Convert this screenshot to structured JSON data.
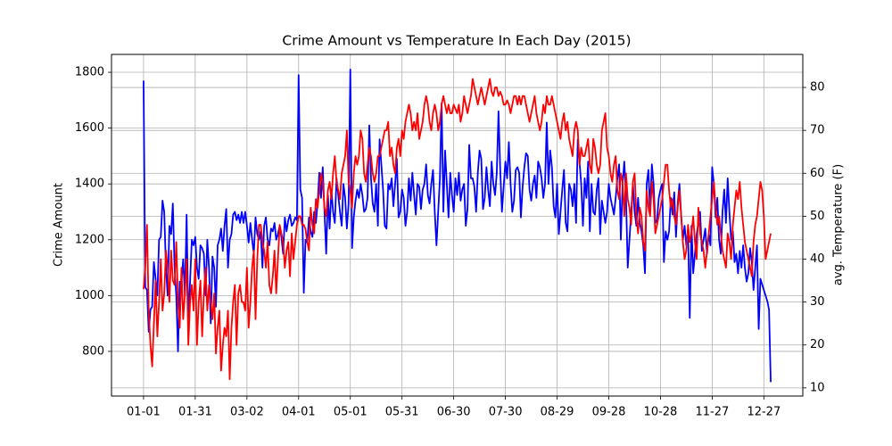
{
  "chart_data": {
    "type": "line",
    "title": "Crime Amount vs Temperature In Each Day (2015)",
    "ylabel": "Crime Amount",
    "y2label": "avg. Temperature (F)",
    "grid": true,
    "x": [
      "01-01",
      "01-02",
      "01-03",
      "01-04",
      "01-05",
      "01-06",
      "01-07",
      "01-08",
      "01-09",
      "01-10",
      "01-11",
      "01-12",
      "01-13",
      "01-14",
      "01-15",
      "01-16",
      "01-17",
      "01-18",
      "01-19",
      "01-20",
      "01-21",
      "01-22",
      "01-23",
      "01-24",
      "01-25",
      "01-26",
      "01-27",
      "01-28",
      "01-29",
      "01-30",
      "01-31",
      "02-01",
      "02-02",
      "02-03",
      "02-04",
      "02-05",
      "02-06",
      "02-07",
      "02-08",
      "02-09",
      "02-10",
      "02-11",
      "02-12",
      "02-13",
      "02-14",
      "02-15",
      "02-16",
      "02-17",
      "02-18",
      "02-19",
      "02-20",
      "02-21",
      "02-22",
      "02-23",
      "02-24",
      "02-25",
      "02-26",
      "02-27",
      "02-28",
      "03-01",
      "03-02",
      "03-03",
      "03-04",
      "03-05",
      "03-06",
      "03-07",
      "03-08",
      "03-09",
      "03-10",
      "03-11",
      "03-12",
      "03-13",
      "03-14",
      "03-15",
      "03-16",
      "03-17",
      "03-18",
      "03-19",
      "03-20",
      "03-21",
      "03-22",
      "03-23",
      "03-24",
      "03-25",
      "03-26",
      "03-27",
      "03-28",
      "03-29",
      "03-30",
      "03-31",
      "04-01",
      "04-02",
      "04-03",
      "04-04",
      "04-05",
      "04-06",
      "04-07",
      "04-08",
      "04-09",
      "04-10",
      "04-11",
      "04-12",
      "04-13",
      "04-14",
      "04-15",
      "04-16",
      "04-17",
      "04-18",
      "04-19",
      "04-20",
      "04-21",
      "04-22",
      "04-23",
      "04-24",
      "04-25",
      "04-26",
      "04-27",
      "04-28",
      "04-29",
      "04-30",
      "05-01",
      "05-02",
      "05-03",
      "05-04",
      "05-05",
      "05-06",
      "05-07",
      "05-08",
      "05-09",
      "05-10",
      "05-11",
      "05-12",
      "05-13",
      "05-14",
      "05-15",
      "05-16",
      "05-17",
      "05-18",
      "05-19",
      "05-20",
      "05-21",
      "05-22",
      "05-23",
      "05-24",
      "05-25",
      "05-26",
      "05-27",
      "05-28",
      "05-29",
      "05-30",
      "05-31",
      "06-01",
      "06-02",
      "06-03",
      "06-04",
      "06-05",
      "06-06",
      "06-07",
      "06-08",
      "06-09",
      "06-10",
      "06-11",
      "06-12",
      "06-13",
      "06-14",
      "06-15",
      "06-16",
      "06-17",
      "06-18",
      "06-19",
      "06-20",
      "06-21",
      "06-22",
      "06-23",
      "06-24",
      "06-25",
      "06-26",
      "06-27",
      "06-28",
      "06-29",
      "06-30",
      "07-01",
      "07-02",
      "07-03",
      "07-04",
      "07-05",
      "07-06",
      "07-07",
      "07-08",
      "07-09",
      "07-10",
      "07-11",
      "07-12",
      "07-13",
      "07-14",
      "07-15",
      "07-16",
      "07-17",
      "07-18",
      "07-19",
      "07-20",
      "07-21",
      "07-22",
      "07-23",
      "07-24",
      "07-25",
      "07-26",
      "07-27",
      "07-28",
      "07-29",
      "07-30",
      "07-31",
      "08-01",
      "08-02",
      "08-03",
      "08-04",
      "08-05",
      "08-06",
      "08-07",
      "08-08",
      "08-09",
      "08-10",
      "08-11",
      "08-12",
      "08-13",
      "08-14",
      "08-15",
      "08-16",
      "08-17",
      "08-18",
      "08-19",
      "08-20",
      "08-21",
      "08-22",
      "08-23",
      "08-24",
      "08-25",
      "08-26",
      "08-27",
      "08-28",
      "08-29",
      "08-30",
      "08-31",
      "09-01",
      "09-02",
      "09-03",
      "09-04",
      "09-05",
      "09-06",
      "09-07",
      "09-08",
      "09-09",
      "09-10",
      "09-11",
      "09-12",
      "09-13",
      "09-14",
      "09-15",
      "09-16",
      "09-17",
      "09-18",
      "09-19",
      "09-20",
      "09-21",
      "09-22",
      "09-23",
      "09-24",
      "09-25",
      "09-26",
      "09-27",
      "09-28",
      "09-29",
      "09-30",
      "10-01",
      "10-02",
      "10-03",
      "10-04",
      "10-05",
      "10-06",
      "10-07",
      "10-08",
      "10-09",
      "10-10",
      "10-11",
      "10-12",
      "10-13",
      "10-14",
      "10-15",
      "10-16",
      "10-17",
      "10-18",
      "10-19",
      "10-20",
      "10-21",
      "10-22",
      "10-23",
      "10-24",
      "10-25",
      "10-26",
      "10-27",
      "10-28",
      "10-29",
      "10-30",
      "10-31",
      "11-01",
      "11-02",
      "11-03",
      "11-04",
      "11-05",
      "11-06",
      "11-07",
      "11-08",
      "11-09",
      "11-10",
      "11-11",
      "11-12",
      "11-13",
      "11-14",
      "11-15",
      "11-16",
      "11-17",
      "11-18",
      "11-19",
      "11-20",
      "11-21",
      "11-22",
      "11-23",
      "11-24",
      "11-25",
      "11-26",
      "11-27",
      "11-28",
      "11-29",
      "11-30",
      "12-01",
      "12-02",
      "12-03",
      "12-04",
      "12-05",
      "12-06",
      "12-07",
      "12-08",
      "12-09",
      "12-10",
      "12-11",
      "12-12",
      "12-13",
      "12-14",
      "12-15",
      "12-16",
      "12-17",
      "12-18",
      "12-19",
      "12-20",
      "12-21",
      "12-22",
      "12-23",
      "12-24",
      "12-25",
      "12-26",
      "12-27",
      "12-28",
      "12-29",
      "12-30",
      "12-31"
    ],
    "xticks": [
      "01-01",
      "01-31",
      "03-02",
      "04-01",
      "05-01",
      "05-31",
      "06-30",
      "07-30",
      "08-29",
      "09-28",
      "10-28",
      "11-27",
      "12-27"
    ],
    "ylim": [
      640,
      1864
    ],
    "yticks": [
      800,
      1000,
      1200,
      1400,
      1600,
      1800
    ],
    "y2lim": [
      8.1,
      87.7
    ],
    "y2ticks": [
      10,
      20,
      30,
      40,
      50,
      60,
      70,
      80
    ],
    "series": [
      {
        "color": "#0000ff",
        "values": [
          1770,
          1030,
          1020,
          870,
          950,
          960,
          1120,
          1060,
          1000,
          1200,
          1210,
          1340,
          1300,
          1100,
          1000,
          1250,
          1220,
          1330,
          1100,
          1000,
          800,
          1050,
          1050,
          1130,
          1000,
          1290,
          900,
          1050,
          1200,
          1180,
          1210,
          1100,
          1060,
          1180,
          1170,
          1150,
          1000,
          1200,
          1100,
          900,
          1140,
          1100,
          960,
          1180,
          1200,
          1240,
          1160,
          1250,
          1310,
          1100,
          1200,
          1220,
          1290,
          1300,
          1270,
          1290,
          1260,
          1300,
          1260,
          1300,
          1250,
          1190,
          1260,
          1200,
          1150,
          1280,
          1220,
          1200,
          1230,
          1100,
          1250,
          1280,
          1200,
          1180,
          1240,
          1230,
          1260,
          1200,
          1220,
          1250,
          1210,
          1150,
          1280,
          1230,
          1270,
          1290,
          1250,
          1260,
          1280,
          1270,
          1790,
          1380,
          1350,
          1010,
          1200,
          1190,
          1280,
          1230,
          1210,
          1300,
          1260,
          1330,
          1440,
          1350,
          1460,
          1300,
          1150,
          1360,
          1240,
          1380,
          1300,
          1260,
          1420,
          1360,
          1300,
          1250,
          1400,
          1350,
          1240,
          1330,
          1810,
          1170,
          1280,
          1340,
          1380,
          1350,
          1400,
          1360,
          1300,
          1310,
          1350,
          1610,
          1420,
          1330,
          1300,
          1400,
          1250,
          1560,
          1470,
          1380,
          1250,
          1240,
          1400,
          1380,
          1420,
          1320,
          1400,
          1490,
          1280,
          1300,
          1380,
          1350,
          1250,
          1300,
          1420,
          1340,
          1440,
          1360,
          1290,
          1400,
          1390,
          1310,
          1380,
          1400,
          1470,
          1360,
          1330,
          1400,
          1450,
          1300,
          1180,
          1300,
          1420,
          1690,
          1300,
          1520,
          1400,
          1280,
          1440,
          1360,
          1300,
          1420,
          1360,
          1440,
          1340,
          1380,
          1400,
          1250,
          1310,
          1540,
          1420,
          1420,
          1390,
          1300,
          1440,
          1520,
          1490,
          1310,
          1350,
          1460,
          1380,
          1320,
          1480,
          1400,
          1360,
          1440,
          1660,
          1450,
          1300,
          1390,
          1480,
          1420,
          1550,
          1400,
          1300,
          1340,
          1450,
          1460,
          1440,
          1280,
          1390,
          1460,
          1510,
          1500,
          1380,
          1340,
          1400,
          1430,
          1350,
          1480,
          1460,
          1420,
          1350,
          1400,
          1620,
          1400,
          1520,
          1460,
          1320,
          1280,
          1400,
          1220,
          1300,
          1380,
          1450,
          1260,
          1230,
          1400,
          1380,
          1320,
          1400,
          1260,
          1560,
          1480,
          1400,
          1250,
          1420,
          1350,
          1480,
          1230,
          1400,
          1300,
          1290,
          1380,
          1420,
          1220,
          1340,
          1300,
          1260,
          1300,
          1400,
          1350,
          1320,
          1290,
          1350,
          1420,
          1470,
          1200,
          1400,
          1480,
          1350,
          1100,
          1200,
          1300,
          1400,
          1300,
          1250,
          1350,
          1260,
          1230,
          1180,
          1080,
          1400,
          1450,
          1300,
          1470,
          1400,
          1260,
          1270,
          1350,
          1380,
          1400,
          1120,
          1230,
          1200,
          1230,
          1350,
          1290,
          1370,
          1210,
          1330,
          1400,
          1290,
          1200,
          1250,
          1180,
          1230,
          920,
          1250,
          1080,
          1150,
          1220,
          1260,
          1300,
          1160,
          1200,
          1240,
          1150,
          1220,
          1180,
          1460,
          1400,
          1280,
          1350,
          1200,
          1150,
          1300,
          1380,
          1260,
          1420,
          1300,
          1200,
          1230,
          1120,
          1150,
          1080,
          1160,
          1100,
          1180,
          1100,
          1050,
          1080,
          1170,
          1120,
          1020,
          1100,
          1180,
          880,
          1060,
          1040,
          1020,
          1000,
          980,
          950,
          690
        ]
      },
      {
        "color": "#ff0000",
        "axis": "y2",
        "values": [
          33,
          38,
          48,
          28,
          20,
          15,
          25,
          35,
          22,
          30,
          40,
          28,
          32,
          42,
          38,
          30,
          42,
          35,
          34,
          44,
          30,
          24,
          38,
          26,
          32,
          40,
          20,
          30,
          34,
          28,
          40,
          20,
          30,
          35,
          22,
          32,
          38,
          28,
          34,
          30,
          26,
          32,
          18,
          24,
          28,
          14,
          20,
          24,
          22,
          28,
          12,
          24,
          30,
          34,
          20,
          32,
          34,
          30,
          30,
          28,
          38,
          24,
          30,
          38,
          42,
          26,
          40,
          48,
          48,
          44,
          42,
          38,
          44,
          34,
          32,
          36,
          42,
          32,
          40,
          48,
          46,
          44,
          38,
          42,
          44,
          36,
          46,
          40,
          44,
          48,
          50,
          50,
          48,
          48,
          47,
          44,
          42,
          52,
          48,
          46,
          54,
          52,
          56,
          60,
          58,
          52,
          50,
          56,
          58,
          54,
          60,
          64,
          58,
          56,
          54,
          60,
          62,
          64,
          70,
          58,
          56,
          52,
          60,
          64,
          62,
          64,
          70,
          68,
          60,
          58,
          62,
          66,
          64,
          60,
          58,
          60,
          64,
          64,
          66,
          68,
          70,
          70,
          72,
          64,
          66,
          62,
          60,
          66,
          68,
          64,
          70,
          68,
          72,
          74,
          76,
          74,
          70,
          72,
          70,
          74,
          68,
          70,
          72,
          76,
          78,
          76,
          72,
          70,
          74,
          76,
          74,
          70,
          72,
          76,
          78,
          76,
          74,
          76,
          74,
          74,
          76,
          75,
          74,
          76,
          72,
          74,
          78,
          76,
          74,
          76,
          78,
          82,
          80,
          78,
          76,
          78,
          80,
          78,
          76,
          78,
          80,
          82,
          79,
          78,
          80,
          80,
          78,
          79,
          78,
          76,
          76,
          77,
          76,
          74,
          76,
          78,
          78,
          76,
          78,
          76,
          78,
          78,
          76,
          74,
          72,
          74,
          76,
          78,
          74,
          72,
          70,
          72,
          76,
          74,
          78,
          76,
          76,
          78,
          76,
          74,
          72,
          70,
          68,
          72,
          74,
          70,
          72,
          68,
          66,
          64,
          70,
          72,
          70,
          62,
          66,
          64,
          64,
          66,
          68,
          62,
          60,
          68,
          66,
          62,
          60,
          62,
          70,
          72,
          74,
          66,
          64,
          60,
          58,
          62,
          64,
          56,
          54,
          60,
          58,
          50,
          60,
          54,
          52,
          48,
          58,
          60,
          50,
          46,
          52,
          50,
          44,
          42,
          56,
          52,
          50,
          58,
          54,
          46,
          48,
          50,
          52,
          54,
          58,
          62,
          62,
          56,
          52,
          54,
          50,
          48,
          52,
          56,
          50,
          44,
          40,
          42,
          48,
          44,
          46,
          50,
          44,
          40,
          52,
          46,
          44,
          42,
          38,
          42,
          46,
          50,
          54,
          58,
          52,
          48,
          50,
          46,
          42,
          40,
          38,
          46,
          44,
          40,
          48,
          52,
          56,
          54,
          58,
          52,
          48,
          44,
          42,
          40,
          38,
          36,
          44,
          48,
          50,
          54,
          58,
          56,
          50,
          40,
          42,
          44,
          46
        ]
      }
    ]
  }
}
